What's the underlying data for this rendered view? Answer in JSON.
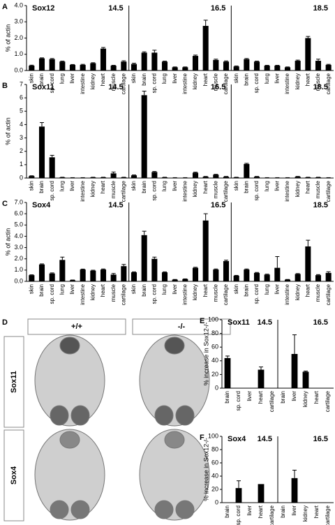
{
  "chart_data": [
    {
      "type": "bar",
      "panel": "A",
      "title": "Sox12",
      "ylabel": "% of actin",
      "color": "#000000",
      "ylim": [
        0,
        4
      ],
      "yticks": [
        {
          "value": 0,
          "label": "0.0"
        },
        {
          "value": 1,
          "label": "1.0"
        },
        {
          "value": 2,
          "label": "2.0"
        },
        {
          "value": 3,
          "label": "3.0"
        },
        {
          "value": 4,
          "label": "4.0"
        }
      ],
      "groups": [
        {
          "stage": "14.5",
          "categories": [
            "skin",
            "brain",
            "sp. cord",
            "lung",
            "liver",
            "intestine",
            "kidney",
            "heart",
            "muscle",
            "cartilage"
          ],
          "values": [
            0.3,
            0.75,
            0.7,
            0.55,
            0.35,
            0.35,
            0.45,
            1.35,
            0.3,
            0.55
          ],
          "errors": [
            0.03,
            0.03,
            0.04,
            0.03,
            0.02,
            0.03,
            0.03,
            0.07,
            0.02,
            0.05
          ]
        },
        {
          "stage": "16.5",
          "categories": [
            "skin",
            "brain",
            "sp. cord",
            "lung",
            "liver",
            "intestine",
            "kidney",
            "heart",
            "muscle",
            "cartilage"
          ],
          "values": [
            0.4,
            1.1,
            1.1,
            0.55,
            0.2,
            0.2,
            0.9,
            2.75,
            0.65,
            0.55
          ],
          "errors": [
            0.05,
            0.05,
            0.15,
            0.03,
            0.02,
            0.02,
            0.05,
            0.35,
            0.05,
            0.04
          ]
        },
        {
          "stage": "18.5",
          "categories": [
            "skin",
            "brain",
            "sp. cord",
            "lung",
            "liver",
            "intestine",
            "kidney",
            "heart",
            "muscle",
            "cartilage"
          ],
          "values": [
            0.25,
            0.7,
            0.55,
            0.3,
            0.3,
            0.2,
            0.6,
            2.0,
            0.6,
            0.35
          ],
          "errors": [
            0.03,
            0.04,
            0.03,
            0.02,
            0.02,
            0.02,
            0.04,
            0.1,
            0.1,
            0.03
          ]
        }
      ]
    },
    {
      "type": "bar",
      "panel": "B",
      "title": "Sox11",
      "ylabel": "% of actin",
      "color": "#000000",
      "ylim": [
        0,
        7
      ],
      "yticks": [
        0,
        1,
        2,
        3,
        4,
        5,
        6,
        7
      ],
      "groups": [
        {
          "stage": "14.5",
          "categories": [
            "skin",
            "brain",
            "sp. cord",
            "lung",
            "liver",
            "intestine",
            "kidney",
            "heart",
            "muscle",
            "cartilage"
          ],
          "values": [
            0.15,
            3.85,
            1.55,
            0.05,
            0.02,
            0.02,
            0.05,
            0.05,
            0.35,
            0.05
          ],
          "errors": [
            0.02,
            0.3,
            0.15,
            0.01,
            0.01,
            0.01,
            0.01,
            0.01,
            0.1,
            0.01
          ]
        },
        {
          "stage": "16.5",
          "categories": [
            "skin",
            "brain",
            "sp. cord",
            "lung",
            "liver",
            "intestine",
            "kidney",
            "heart",
            "muscle",
            "cartilage"
          ],
          "values": [
            0.2,
            6.2,
            0.45,
            0.05,
            0.02,
            0.02,
            0.4,
            0.1,
            0.25,
            0.1
          ],
          "errors": [
            0.03,
            0.3,
            0.04,
            0.01,
            0.01,
            0.01,
            0.04,
            0.02,
            0.03,
            0.02
          ]
        },
        {
          "stage": "18.5",
          "categories": [
            "skin",
            "brain",
            "sp. cord",
            "lung",
            "liver",
            "intestine",
            "kidney",
            "heart",
            "muscle",
            "cartilage"
          ],
          "values": [
            0.05,
            1.05,
            0.1,
            0.02,
            0.02,
            0.02,
            0.1,
            0.05,
            0.05,
            0.02
          ],
          "errors": [
            0.01,
            0.05,
            0.02,
            0.01,
            0.01,
            0.01,
            0.02,
            0.01,
            0.01,
            0.01
          ]
        }
      ]
    },
    {
      "type": "bar",
      "panel": "C",
      "title": "Sox4",
      "ylabel": "% of actin",
      "color": "#000000",
      "ylim": [
        0,
        7
      ],
      "yticks": [
        {
          "value": 0,
          "label": "0.0"
        },
        {
          "value": 1,
          "label": "1.0"
        },
        {
          "value": 2,
          "label": "2.0"
        },
        {
          "value": 3,
          "label": "3.0"
        },
        {
          "value": 4,
          "label": "4.0"
        },
        {
          "value": 5,
          "label": "5.0"
        },
        {
          "value": 6,
          "label": "6.0"
        },
        {
          "value": 7,
          "label": "7.0"
        }
      ],
      "groups": [
        {
          "stage": "14.5",
          "categories": [
            "skin",
            "brain",
            "sp. cord",
            "lung",
            "liver",
            "intestine",
            "kidney",
            "heart",
            "muscle",
            "cartilage"
          ],
          "values": [
            0.55,
            1.5,
            0.7,
            1.9,
            0.1,
            1.05,
            0.95,
            1.05,
            0.6,
            1.35
          ],
          "errors": [
            0.03,
            0.05,
            0.05,
            0.25,
            0.02,
            0.04,
            0.04,
            0.05,
            0.1,
            0.15
          ]
        },
        {
          "stage": "16.5",
          "categories": [
            "skin",
            "brain",
            "sp. cord",
            "lung",
            "liver",
            "intestine",
            "kidney",
            "heart",
            "muscle",
            "cartilage"
          ],
          "values": [
            0.8,
            4.1,
            2.0,
            0.8,
            0.15,
            0.2,
            1.2,
            5.4,
            1.05,
            1.8
          ],
          "errors": [
            0.04,
            0.35,
            0.15,
            0.04,
            0.02,
            0.02,
            0.05,
            0.6,
            0.05,
            0.08
          ]
        },
        {
          "stage": "18.5",
          "categories": [
            "skin",
            "brain",
            "sp. cord",
            "lung",
            "liver",
            "intestine",
            "kidney",
            "heart",
            "muscle",
            "cartilage"
          ],
          "values": [
            0.5,
            1.05,
            0.75,
            0.6,
            1.2,
            0.15,
            0.65,
            3.1,
            0.55,
            0.75
          ],
          "errors": [
            0.03,
            0.05,
            0.04,
            0.04,
            1.0,
            0.02,
            0.04,
            0.55,
            0.05,
            0.1
          ]
        }
      ]
    },
    {
      "type": "bar",
      "panel": "E",
      "title": "Sox11",
      "ylabel": "% increase in Sox12-/-",
      "color": "#000000",
      "ylim": [
        0,
        100
      ],
      "yticks": [
        0,
        20,
        40,
        60,
        80,
        100
      ],
      "groups": [
        {
          "stage": "14.5",
          "categories": [
            "brain",
            "sp. cord",
            "liver",
            "heart",
            "cartilage"
          ],
          "values": [
            44,
            0,
            0,
            27,
            0
          ],
          "errors": [
            3,
            0,
            0,
            4,
            0
          ]
        },
        {
          "stage": "16.5",
          "categories": [
            "brain",
            "liver",
            "kidney",
            "heart",
            "cartilage"
          ],
          "values": [
            0,
            50,
            24,
            0,
            0
          ],
          "errors": [
            0,
            28,
            1,
            0,
            0
          ]
        }
      ]
    },
    {
      "type": "bar",
      "panel": "F",
      "title": "Sox4",
      "ylabel": "% increase in Sox12-/-",
      "color": "#000000",
      "ylim": [
        0,
        100
      ],
      "yticks": [
        0,
        20,
        40,
        60,
        80,
        100
      ],
      "groups": [
        {
          "stage": "14.5",
          "categories": [
            "brain",
            "sp. cord",
            "liver",
            "heart",
            "cartilage"
          ],
          "values": [
            0,
            22,
            0,
            28,
            0
          ],
          "errors": [
            0,
            11,
            0,
            0,
            0
          ]
        },
        {
          "stage": "16.5",
          "categories": [
            "brain",
            "liver",
            "kidney",
            "heart",
            "cartilage"
          ],
          "values": [
            0,
            37,
            0,
            0,
            0
          ],
          "errors": [
            0,
            12,
            0,
            0,
            0
          ]
        }
      ]
    }
  ],
  "panel_d": {
    "panel": "D",
    "columns": [
      "+/+",
      "-/-"
    ],
    "rows": [
      "Sox11",
      "Sox4"
    ]
  }
}
